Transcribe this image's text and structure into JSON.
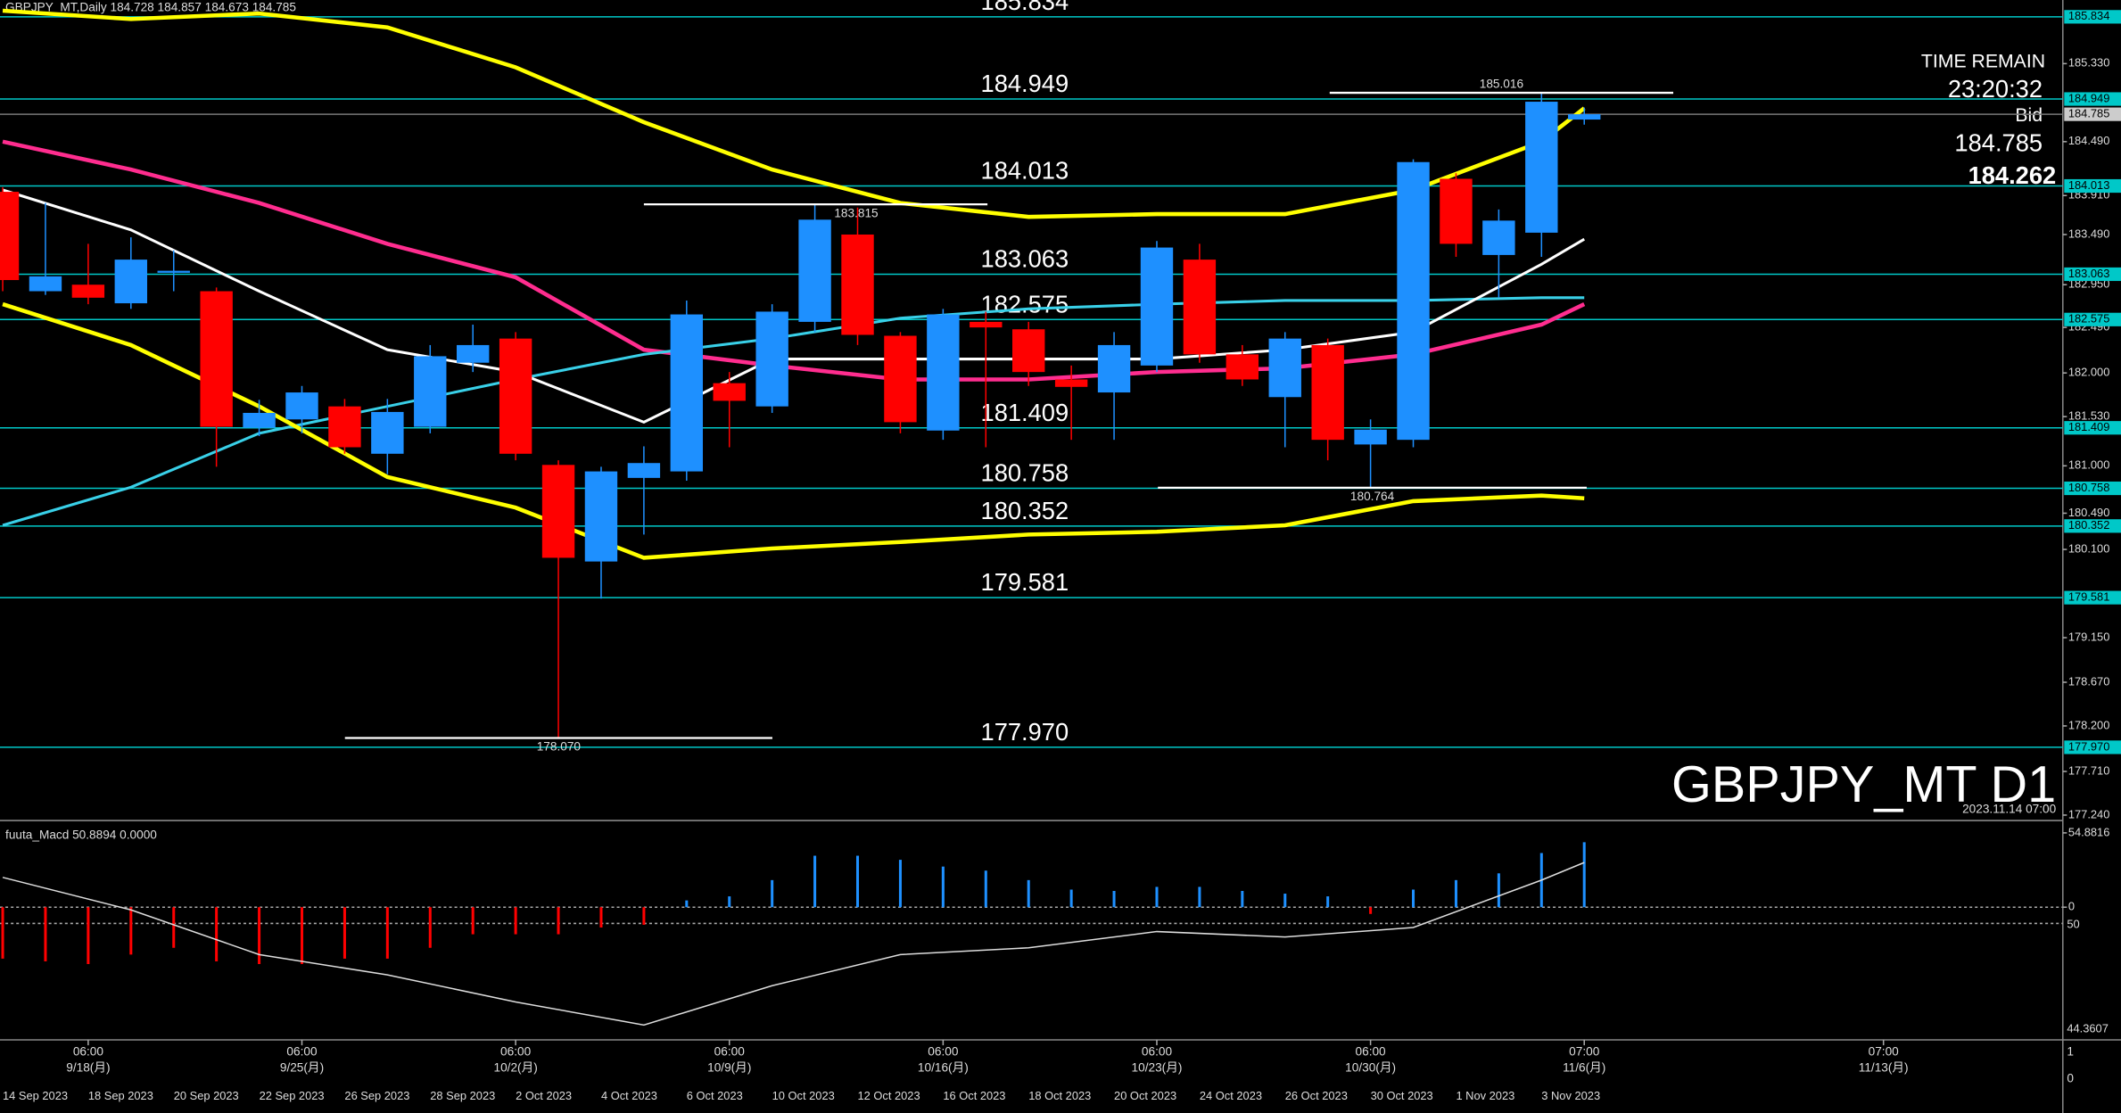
{
  "chart_data": {
    "type": "candlestick",
    "header": "GBPJPY_MT,Daily  184.728 184.857 184.673 184.785",
    "watermark": "GBPJPY_MT D1",
    "timestamp": "2023.11.14 07:00",
    "info": {
      "time_remain_label": "TIME REMAIN",
      "time_remain": "23:20:32",
      "bid_label": "Bid",
      "bid": 184.785,
      "other": 184.262
    },
    "up_color": "#1e90ff",
    "down_color": "#ff0000",
    "level_color": "#00c8c8",
    "categories": [
      "14 Sep 2023",
      null,
      "18 Sep 2023",
      null,
      "20 Sep 2023",
      null,
      "22 Sep 2023",
      null,
      "26 Sep 2023",
      null,
      "28 Sep 2023",
      null,
      "2 Oct 2023",
      null,
      "4 Oct 2023",
      null,
      "6 Oct 2023",
      null,
      "10 Oct 2023",
      null,
      "12 Oct 2023",
      null,
      "16 Oct 2023",
      null,
      "18 Oct 2023",
      null,
      "20 Oct 2023",
      null,
      "24 Oct 2023",
      null,
      "26 Oct 2023",
      null,
      "30 Oct 2023",
      null,
      "1 Nov 2023",
      null,
      "3 Nov 2023",
      null
    ],
    "time_labels": [
      {
        "time": "06:00",
        "date": "9/18(月)"
      },
      {
        "time": "06:00",
        "date": "9/25(月)"
      },
      {
        "time": "06:00",
        "date": "10/2(月)"
      },
      {
        "time": "06:00",
        "date": "10/9(月)"
      },
      {
        "time": "06:00",
        "date": "10/16(月)"
      },
      {
        "time": "06:00",
        "date": "10/23(月)"
      },
      {
        "time": "06:00",
        "date": "10/30(月)"
      },
      {
        "time": "07:00",
        "date": "11/6(月)"
      },
      {
        "time": "07:00",
        "date": "11/13(月)"
      }
    ],
    "open": [
      183.95,
      182.88,
      182.95,
      182.75,
      183.09,
      182.88,
      181.41,
      181.5,
      181.64,
      181.13,
      181.42,
      182.11,
      182.37,
      181.01,
      179.97,
      180.87,
      180.94,
      181.89,
      181.64,
      182.55,
      183.49,
      182.4,
      181.38,
      182.55,
      182.47,
      181.93,
      181.79,
      182.08,
      183.22,
      182.2,
      181.74,
      182.3,
      181.23,
      181.28,
      184.09,
      183.27,
      183.51,
      184.728
    ],
    "high": [
      184.0,
      183.83,
      183.39,
      183.46,
      183.32,
      182.92,
      181.71,
      181.86,
      181.72,
      181.72,
      182.3,
      182.52,
      182.44,
      181.06,
      180.99,
      181.21,
      182.78,
      182.01,
      182.74,
      183.815,
      183.78,
      182.44,
      182.69,
      182.66,
      182.55,
      182.08,
      182.44,
      183.42,
      183.39,
      182.3,
      182.44,
      182.37,
      181.5,
      184.3,
      184.15,
      183.76,
      185.016,
      184.857
    ],
    "low": [
      182.88,
      182.84,
      182.74,
      182.69,
      182.88,
      180.99,
      181.32,
      181.35,
      181.13,
      180.91,
      181.35,
      182.01,
      181.06,
      178.07,
      179.57,
      180.26,
      180.84,
      181.2,
      181.57,
      182.44,
      182.3,
      181.35,
      181.28,
      181.2,
      181.86,
      181.28,
      181.28,
      182.01,
      182.11,
      181.86,
      181.2,
      181.06,
      180.764,
      181.2,
      183.25,
      182.81,
      183.25,
      184.673
    ],
    "close": [
      183.0,
      183.04,
      182.81,
      183.22,
      183.1,
      181.42,
      181.57,
      181.79,
      181.2,
      181.58,
      182.18,
      182.3,
      181.13,
      180.01,
      180.94,
      181.03,
      182.63,
      181.7,
      182.66,
      183.65,
      182.41,
      181.47,
      182.63,
      182.49,
      182.01,
      181.85,
      182.3,
      183.35,
      182.2,
      181.93,
      182.37,
      181.28,
      181.39,
      184.27,
      183.39,
      183.64,
      184.92,
      184.785
    ],
    "ylim": [
      177.196,
      186.015
    ],
    "yticks": [
      {
        "value": 185.33,
        "label": "185.330"
      },
      {
        "value": 184.49,
        "label": "184.490"
      },
      {
        "value": 183.91,
        "label": "183.910"
      },
      {
        "value": 183.49,
        "label": "183.490"
      },
      {
        "value": 182.95,
        "label": "182.950"
      },
      {
        "value": 182.49,
        "label": "182.490"
      },
      {
        "value": 182.0,
        "label": "182.000"
      },
      {
        "value": 181.53,
        "label": "181.530"
      },
      {
        "value": 181.0,
        "label": "181.000"
      },
      {
        "value": 180.49,
        "label": "180.490"
      },
      {
        "value": 180.1,
        "label": "180.100"
      },
      {
        "value": 179.15,
        "label": "179.150"
      },
      {
        "value": 178.67,
        "label": "178.670"
      },
      {
        "value": 178.2,
        "label": "178.200"
      },
      {
        "value": 177.71,
        "label": "177.710"
      },
      {
        "value": 177.24,
        "label": "177.240"
      }
    ],
    "levels": [
      {
        "value": 185.834,
        "label": "185.834"
      },
      {
        "value": 184.949,
        "label": "184.949"
      },
      {
        "value": 184.013,
        "label": "184.013"
      },
      {
        "value": 183.063,
        "label": "183.063"
      },
      {
        "value": 182.575,
        "label": "182.575"
      },
      {
        "value": 181.409,
        "label": "181.409"
      },
      {
        "value": 180.758,
        "label": "180.758"
      },
      {
        "value": 180.352,
        "label": "180.352"
      },
      {
        "value": 179.581,
        "label": "179.581"
      },
      {
        "value": 177.97,
        "label": "177.970"
      }
    ],
    "annotations": [
      {
        "value": 185.016,
        "label": "185.016"
      },
      {
        "value": 183.815,
        "label": "183.815"
      },
      {
        "value": 180.764,
        "label": "180.764"
      },
      {
        "value": 178.07,
        "label": "178.070"
      }
    ],
    "overlay_index": [
      0,
      3,
      6,
      9,
      12,
      15,
      18,
      21,
      24,
      27,
      30,
      33,
      36,
      37
    ],
    "overlays": [
      {
        "color": "#ff2d8f",
        "values": [
          184.49,
          184.19,
          183.83,
          183.39,
          183.03,
          182.25,
          182.08,
          181.93,
          181.93,
          182.01,
          182.05,
          182.2,
          182.52,
          182.74
        ]
      },
      {
        "color": "#39d0e8",
        "values": [
          180.36,
          180.77,
          181.35,
          181.64,
          181.93,
          182.2,
          182.37,
          182.59,
          182.69,
          182.74,
          182.78,
          182.78,
          182.81,
          182.81
        ]
      },
      {
        "color": "#ffffff",
        "values": [
          183.97,
          183.54,
          182.88,
          182.25,
          182.01,
          181.47,
          182.15,
          182.15,
          182.15,
          182.15,
          182.25,
          182.44,
          183.17,
          183.44
        ]
      },
      {
        "color": "#ffff00",
        "values": [
          185.9,
          185.81,
          185.87,
          185.72,
          185.29,
          184.7,
          184.19,
          183.83,
          183.68,
          183.71,
          183.71,
          183.97,
          184.49,
          184.85
        ]
      },
      {
        "color": "#ffff00",
        "values": [
          182.74,
          182.3,
          181.64,
          180.88,
          180.55,
          180.01,
          180.11,
          180.18,
          180.26,
          180.29,
          180.36,
          180.62,
          180.68,
          180.65
        ]
      }
    ],
    "macd": {
      "title": "fuuta_Macd 50.8894  0.0000",
      "ylim": [
        -90,
        55
      ],
      "yticks": [
        {
          "value": 54.8816,
          "label": "54.8816"
        },
        0
      ],
      "axis_notes": [
        "50",
        "44.3607"
      ],
      "histogram": [
        -38,
        -40,
        -42,
        -35,
        -30,
        -40,
        -42,
        -42,
        -38,
        -38,
        -30,
        -20,
        -20,
        -20,
        -15,
        -13,
        5,
        8,
        20,
        38,
        38,
        35,
        30,
        27,
        20,
        13,
        12,
        15,
        15,
        12,
        10,
        8,
        -5,
        13,
        20,
        25,
        40,
        48
      ],
      "line": [
        22,
        -2,
        -35,
        -50,
        -70,
        -87,
        -58,
        -35,
        -30,
        -18,
        -22,
        -15,
        20,
        33
      ]
    },
    "sub_axis": [
      "1",
      "0"
    ]
  }
}
